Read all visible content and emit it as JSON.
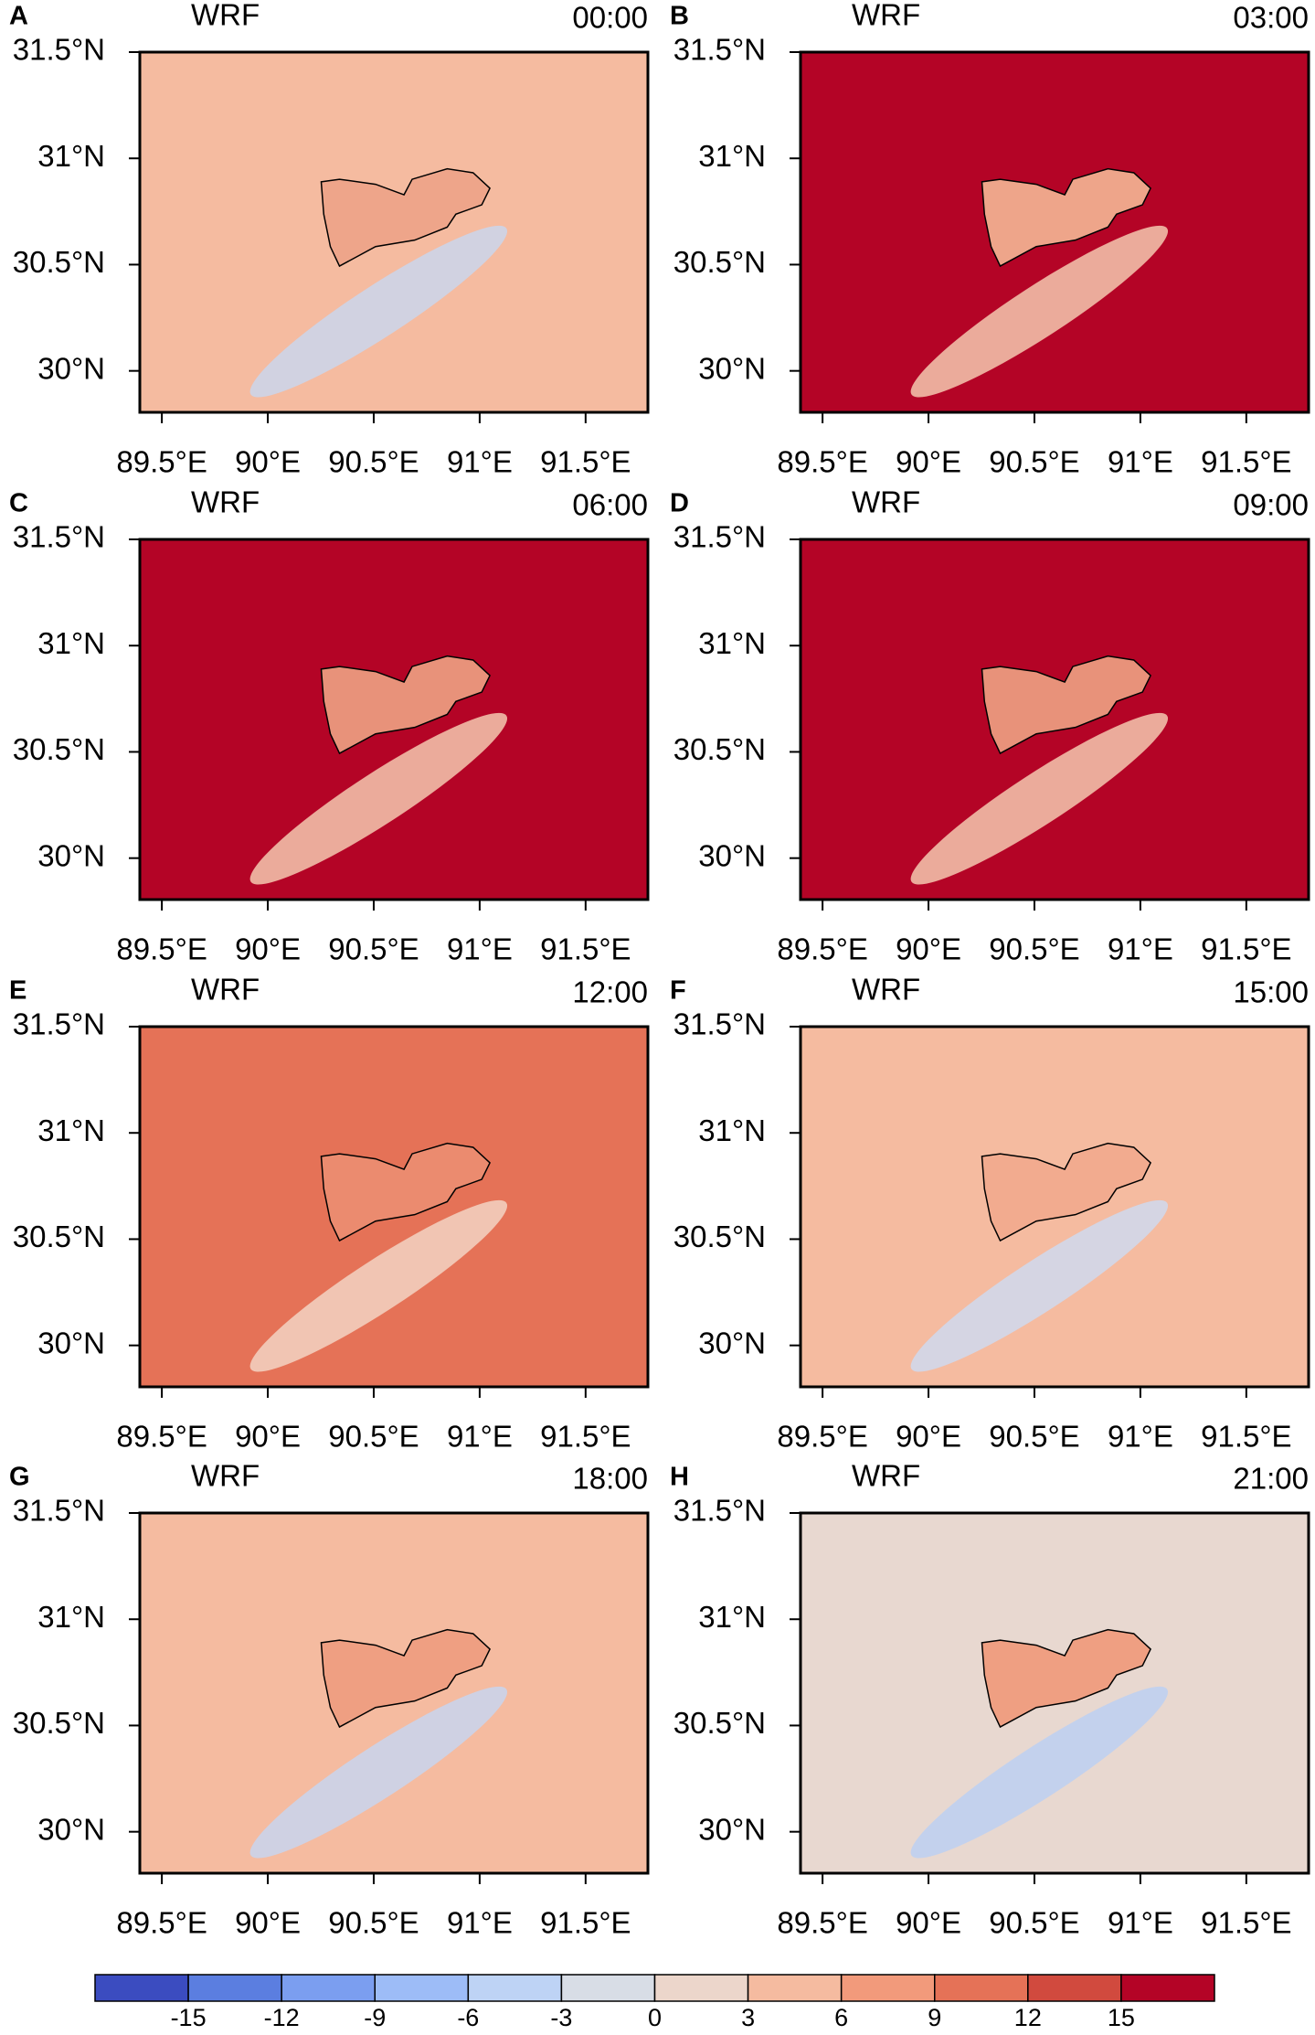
{
  "panels": [
    {
      "letter": "A",
      "model": "WRF",
      "time": "00:00",
      "color": "#f5bba0",
      "valley_color": "#cad6ec",
      "lake_color": "#eea58a"
    },
    {
      "letter": "B",
      "model": "WRF",
      "time": "03:00",
      "color": "#b40426",
      "valley_color": "#f5c9b0",
      "lake_color": "#eea58a"
    },
    {
      "letter": "C",
      "model": "WRF",
      "time": "06:00",
      "color": "#b40426",
      "valley_color": "#f5c9b0",
      "lake_color": "#e8927a"
    },
    {
      "letter": "D",
      "model": "WRF",
      "time": "09:00",
      "color": "#b40426",
      "valley_color": "#f5c9b0",
      "lake_color": "#e8927a"
    },
    {
      "letter": "E",
      "model": "WRF",
      "time": "12:00",
      "color": "#e57257",
      "valley_color": "#f3d3c3",
      "lake_color": "#eb8b6f"
    },
    {
      "letter": "F",
      "model": "WRF",
      "time": "15:00",
      "color": "#f5bba0",
      "valley_color": "#cfd9ee",
      "lake_color": "#f2ab8f"
    },
    {
      "letter": "G",
      "model": "WRF",
      "time": "18:00",
      "color": "#f5bba0",
      "valley_color": "#c8d5ee",
      "lake_color": "#ef9f82"
    },
    {
      "letter": "H",
      "model": "WRF",
      "time": "21:00",
      "color": "#e8d8d0",
      "valley_color": "#bcd0f2",
      "lake_color": "#ef9f82"
    }
  ],
  "lon_range": [
    89.396,
    91.794
  ],
  "lat_range": [
    29.805,
    31.5
  ],
  "lon_ticks": [
    {
      "value": 89.5,
      "label": "89.5°E"
    },
    {
      "value": 90,
      "label": "90°E"
    },
    {
      "value": 90.5,
      "label": "90.5°E"
    },
    {
      "value": 91,
      "label": "91°E"
    },
    {
      "value": 91.5,
      "label": "91.5°E"
    }
  ],
  "lat_ticks": [
    {
      "value": 30,
      "label": "30°N"
    },
    {
      "value": 30.5,
      "label": "30.5°N"
    },
    {
      "value": 31,
      "label": "31°N"
    },
    {
      "value": 31.5,
      "label": "31.5°N"
    }
  ],
  "colorbar": {
    "colors": [
      "#3b4cc0",
      "#5b7ee0",
      "#7b9ef0",
      "#9dbcf7",
      "#bed3f5",
      "#d8dde6",
      "#ecd6cb",
      "#f5bba0",
      "#f29a7b",
      "#e57257",
      "#d14a3e",
      "#b40426"
    ],
    "ticks": [
      -15,
      -12,
      -9,
      -6,
      -3,
      0,
      3,
      6,
      9,
      12,
      15
    ]
  }
}
